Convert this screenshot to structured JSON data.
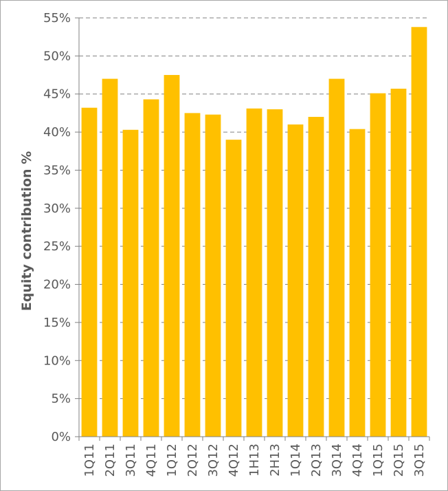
{
  "chart_data": {
    "type": "bar",
    "ylabel": "Equity contribution %",
    "categories": [
      "1Q11",
      "2Q11",
      "3Q11",
      "4Q11",
      "1Q12",
      "2Q12",
      "3Q12",
      "4Q12",
      "1H13",
      "2H13",
      "1Q14",
      "2Q13",
      "3Q14",
      "4Q14",
      "1Q15",
      "2Q15",
      "3Q15"
    ],
    "values": [
      43.2,
      47.0,
      40.3,
      44.3,
      47.5,
      42.5,
      42.3,
      39.0,
      43.1,
      43.0,
      41.0,
      42.0,
      47.0,
      40.4,
      45.1,
      45.7,
      53.8
    ],
    "ylim": [
      0,
      55
    ],
    "yticks": [
      0,
      5,
      10,
      15,
      20,
      25,
      30,
      35,
      40,
      45,
      50,
      55
    ],
    "ytick_labels": [
      "0%",
      "5%",
      "10%",
      "15%",
      "20%",
      "25%",
      "30%",
      "35%",
      "40%",
      "45%",
      "50%",
      "55%"
    ],
    "grid": "horizontal dashed",
    "bar_color": "#FFC000",
    "axis_color": "#808080",
    "grid_color": "#808080"
  }
}
